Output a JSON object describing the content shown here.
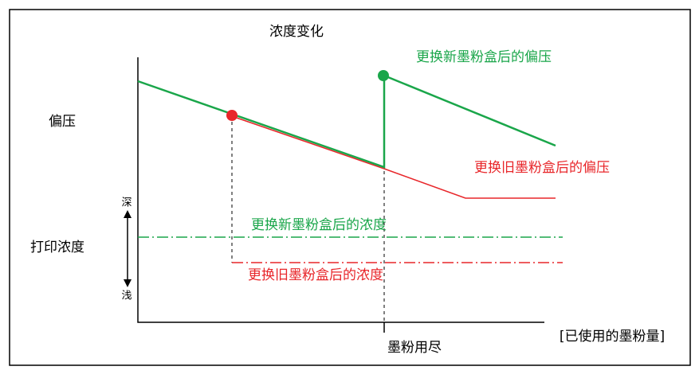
{
  "title": "浓度变化",
  "axes": {
    "y_upper": "偏压",
    "y_lower": "打印浓度",
    "deep": "深",
    "light": "浅",
    "x_axis": "[已使用的墨粉量]",
    "x_marker": "墨粉用尽"
  },
  "labels": {
    "new_bias": "更换新墨粉盒后的偏压",
    "old_bias": "更换旧墨粉盒后的偏压",
    "new_density": "更换新墨粉盒后的浓度",
    "old_density": "更换旧墨粉盒后的浓度"
  }
}
